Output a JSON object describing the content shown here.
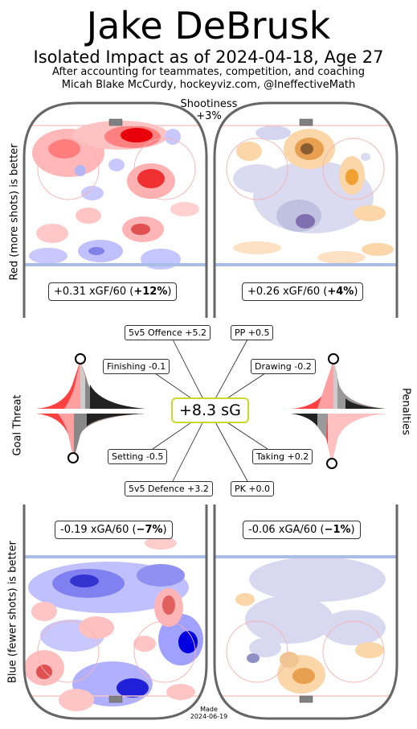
{
  "header": {
    "title": "Jake DeBrusk",
    "subtitle": "Isolated Impact as of 2024-04-18, Age 27",
    "note1": "After accounting for teammates, competition, and coaching",
    "note2": "Micah Blake McCurdy, hockeyviz.com, @IneffectiveMath"
  },
  "shootiness": {
    "label": "Shootiness",
    "value": "+3%"
  },
  "axis_labels": {
    "left_top": "Red (more shots) is better",
    "left_middle": "Goal Threat",
    "right_middle": "Penalties",
    "left_bottom": "Blue (fewer shots) is better"
  },
  "chart_data": [
    {
      "type": "heatmap",
      "panel": "5v5 offence",
      "metric": "+0.31 xGF/60",
      "pct": "+12%",
      "colors": {
        "more": "#e8000b",
        "fewer": "#2a2ae0"
      }
    },
    {
      "type": "heatmap",
      "panel": "PP offence",
      "metric": "+0.26 xGF/60",
      "pct": "+4%",
      "colors": {
        "more": "#f0a030",
        "fewer": "#6060b0"
      }
    },
    {
      "type": "heatmap",
      "panel": "5v5 defence",
      "metric": "-0.19 xGA/60",
      "pct": "−7%",
      "colors": {
        "more": "#e8000b",
        "fewer": "#2a2ae0"
      }
    },
    {
      "type": "heatmap",
      "panel": "PK defence",
      "metric": "-0.06 xGA/60",
      "pct": "−1%",
      "colors": {
        "more": "#f0a030",
        "fewer": "#6060b0"
      }
    }
  ],
  "summary": {
    "total": "+8.3 sG",
    "components": {
      "off5v5": "5v5 Offence +5.2",
      "pp": "PP +0.5",
      "finishing": "Finishing -0.1",
      "drawing": "Drawing -0.2",
      "setting": "Setting -0.5",
      "taking": "Taking +0.2",
      "def5v5": "5v5 Defence +3.2",
      "pk": "PK +0.0"
    }
  },
  "distribution_markers": {
    "finishing_percentile": 0.5,
    "setting_percentile": 0.03,
    "drawing_percentile": 0.5,
    "taking_percentile": 0.5
  },
  "footer": {
    "made_label": "Made",
    "made_date": "2024-06-19"
  }
}
